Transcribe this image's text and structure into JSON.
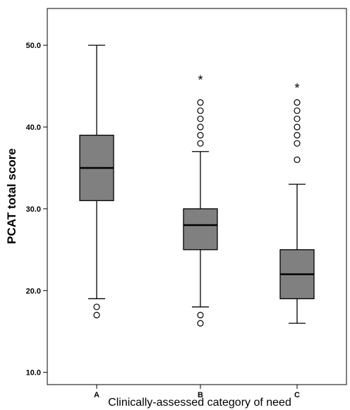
{
  "chart_data": {
    "type": "box",
    "xlabel": "Clinically-assessed category of need",
    "ylabel": "PCAT total score",
    "ylim": [
      8.5,
      54.5
    ],
    "yticks": [
      "10.0",
      "20.0",
      "30.0",
      "40.0",
      "50.0"
    ],
    "ytick_values": [
      10,
      20,
      30,
      40,
      50
    ],
    "grid": false,
    "box_color": "#808080",
    "categories": [
      "A",
      "B",
      "C"
    ],
    "boxes": [
      {
        "category": "A",
        "whisker_low": 19,
        "q1": 31,
        "median": 35,
        "q3": 39,
        "whisker_high": 50,
        "outliers": [
          17,
          18
        ],
        "extremes": []
      },
      {
        "category": "B",
        "whisker_low": 18,
        "q1": 25,
        "median": 28,
        "q3": 30,
        "whisker_high": 37,
        "outliers": [
          16,
          17,
          38,
          39,
          40,
          41,
          42,
          43
        ],
        "extremes": [
          46
        ]
      },
      {
        "category": "C",
        "whisker_low": 16,
        "q1": 19,
        "median": 22,
        "q3": 25,
        "whisker_high": 33,
        "outliers": [
          36,
          38,
          39,
          40,
          41,
          42,
          43
        ],
        "extremes": [
          45
        ]
      }
    ]
  }
}
